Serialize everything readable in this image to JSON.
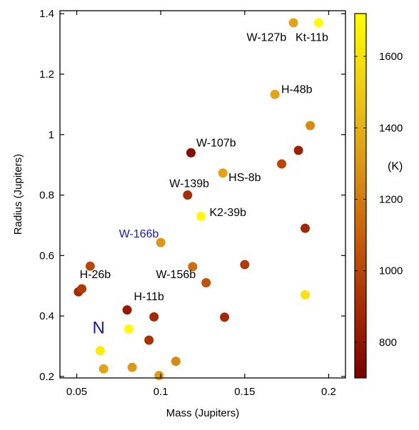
{
  "chart_data": {
    "type": "scatter",
    "xlabel": "Mass (Jupiters)",
    "ylabel": "Radius (Jupiters)",
    "xlim": [
      0.04,
      0.21
    ],
    "ylim": [
      0.195,
      1.41
    ],
    "xticks": [
      0.05,
      0.1,
      0.15,
      0.2
    ],
    "xtick_labels": [
      "0.05",
      "0.1",
      "0.15",
      "0.2"
    ],
    "yticks": [
      0.2,
      0.4,
      0.6,
      0.8,
      1.0,
      1.2,
      1.4
    ],
    "ytick_labels": [
      "0.2",
      "0.4",
      "0.6",
      "0.8",
      "1",
      "1.2",
      "1.4"
    ],
    "grid": false,
    "colorbar": {
      "label": "(K)",
      "min": 700,
      "max": 1720,
      "ticks": [
        800,
        1000,
        1200,
        1400,
        1600
      ],
      "tick_labels": [
        "800",
        "1000",
        "1200",
        "1400",
        "1600"
      ],
      "colors": [
        "#7a0000",
        "#a82d05",
        "#c8620d",
        "#dc9a16",
        "#efcd14",
        "#ffff00"
      ]
    },
    "points": [
      {
        "x": 0.051,
        "y": 0.48,
        "temp": 880
      },
      {
        "x": 0.053,
        "y": 0.49,
        "temp": 950
      },
      {
        "x": 0.058,
        "y": 0.565,
        "temp": 1000
      },
      {
        "x": 0.064,
        "y": 0.285,
        "temp": 1650
      },
      {
        "x": 0.066,
        "y": 0.225,
        "temp": 1350
      },
      {
        "x": 0.08,
        "y": 0.42,
        "temp": 820
      },
      {
        "x": 0.081,
        "y": 0.357,
        "temp": 1700
      },
      {
        "x": 0.083,
        "y": 0.23,
        "temp": 1300
      },
      {
        "x": 0.093,
        "y": 0.32,
        "temp": 920
      },
      {
        "x": 0.096,
        "y": 0.397,
        "temp": 880
      },
      {
        "x": 0.099,
        "y": 0.203,
        "temp": 1320
      },
      {
        "x": 0.1,
        "y": 0.643,
        "temp": 1300
      },
      {
        "x": 0.109,
        "y": 0.25,
        "temp": 1250
      },
      {
        "x": 0.116,
        "y": 0.8,
        "temp": 900
      },
      {
        "x": 0.118,
        "y": 0.94,
        "temp": 760
      },
      {
        "x": 0.119,
        "y": 0.563,
        "temp": 1150
      },
      {
        "x": 0.124,
        "y": 0.73,
        "temp": 1700
      },
      {
        "x": 0.127,
        "y": 0.51,
        "temp": 1050
      },
      {
        "x": 0.137,
        "y": 0.873,
        "temp": 1350
      },
      {
        "x": 0.138,
        "y": 0.396,
        "temp": 880
      },
      {
        "x": 0.15,
        "y": 0.57,
        "temp": 950
      },
      {
        "x": 0.168,
        "y": 1.133,
        "temp": 1350
      },
      {
        "x": 0.172,
        "y": 0.903,
        "temp": 1000
      },
      {
        "x": 0.179,
        "y": 1.37,
        "temp": 1350
      },
      {
        "x": 0.182,
        "y": 0.948,
        "temp": 850
      },
      {
        "x": 0.186,
        "y": 0.69,
        "temp": 870
      },
      {
        "x": 0.186,
        "y": 0.47,
        "temp": 1600
      },
      {
        "x": 0.189,
        "y": 1.03,
        "temp": 1250
      },
      {
        "x": 0.194,
        "y": 1.37,
        "temp": 1700
      }
    ],
    "annotations": [
      {
        "text": "W-127b",
        "x": 0.163,
        "y": 1.31,
        "color": "#000000"
      },
      {
        "text": "Kt-11b",
        "x": 0.19,
        "y": 1.31,
        "color": "#000000"
      },
      {
        "text": "H-48b",
        "x": 0.181,
        "y": 1.137,
        "color": "#000000"
      },
      {
        "text": "W-107b",
        "x": 0.133,
        "y": 0.96,
        "color": "#000000"
      },
      {
        "text": "HS-8b",
        "x": 0.15,
        "y": 0.846,
        "color": "#000000"
      },
      {
        "text": "W-139b",
        "x": 0.117,
        "y": 0.826,
        "color": "#000000"
      },
      {
        "text": "K2-39b",
        "x": 0.14,
        "y": 0.73,
        "color": "#000000"
      },
      {
        "text": "W-166b",
        "x": 0.087,
        "y": 0.66,
        "color": "#1a1aa0"
      },
      {
        "text": "H-26b",
        "x": 0.061,
        "y": 0.525,
        "color": "#000000"
      },
      {
        "text": "W-156b",
        "x": 0.109,
        "y": 0.525,
        "color": "#000000"
      },
      {
        "text": "H-11b",
        "x": 0.093,
        "y": 0.452,
        "color": "#000000"
      },
      {
        "text": "N",
        "x": 0.063,
        "y": 0.342,
        "color": "#1a1aa0"
      }
    ]
  }
}
